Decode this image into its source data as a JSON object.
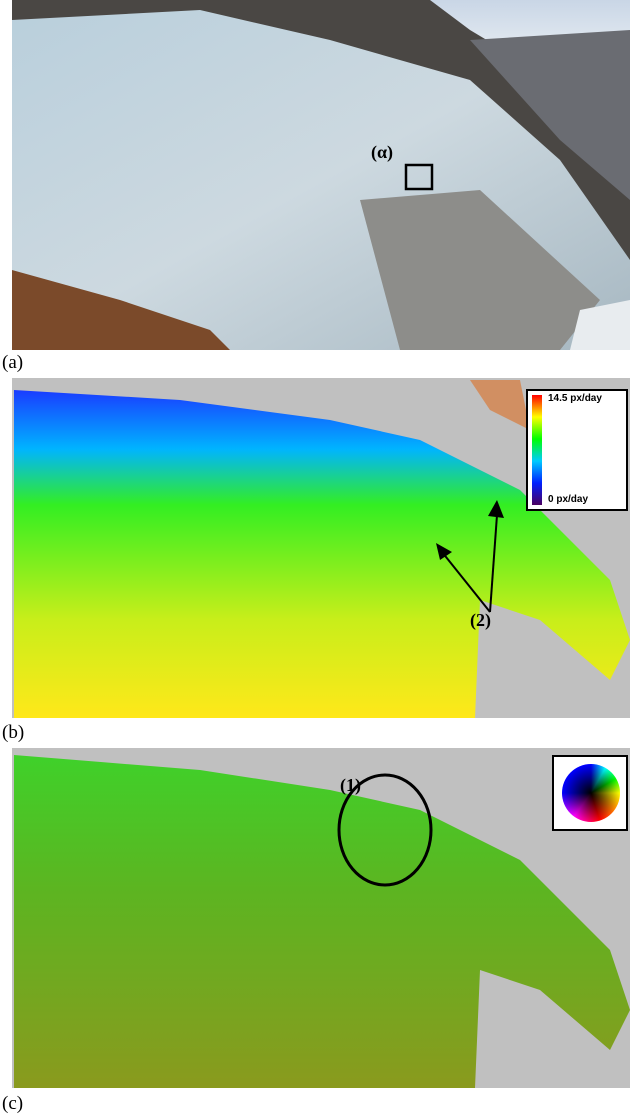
{
  "panels": [
    {
      "label": "(a)",
      "annotation": "(α)"
    },
    {
      "label": "(b)",
      "colorbar": {
        "max_label": "14.5 px/day",
        "min_label": "0 px/day"
      },
      "annotation": "(2)"
    },
    {
      "label": "(c)",
      "annotation": "(1)"
    }
  ]
}
